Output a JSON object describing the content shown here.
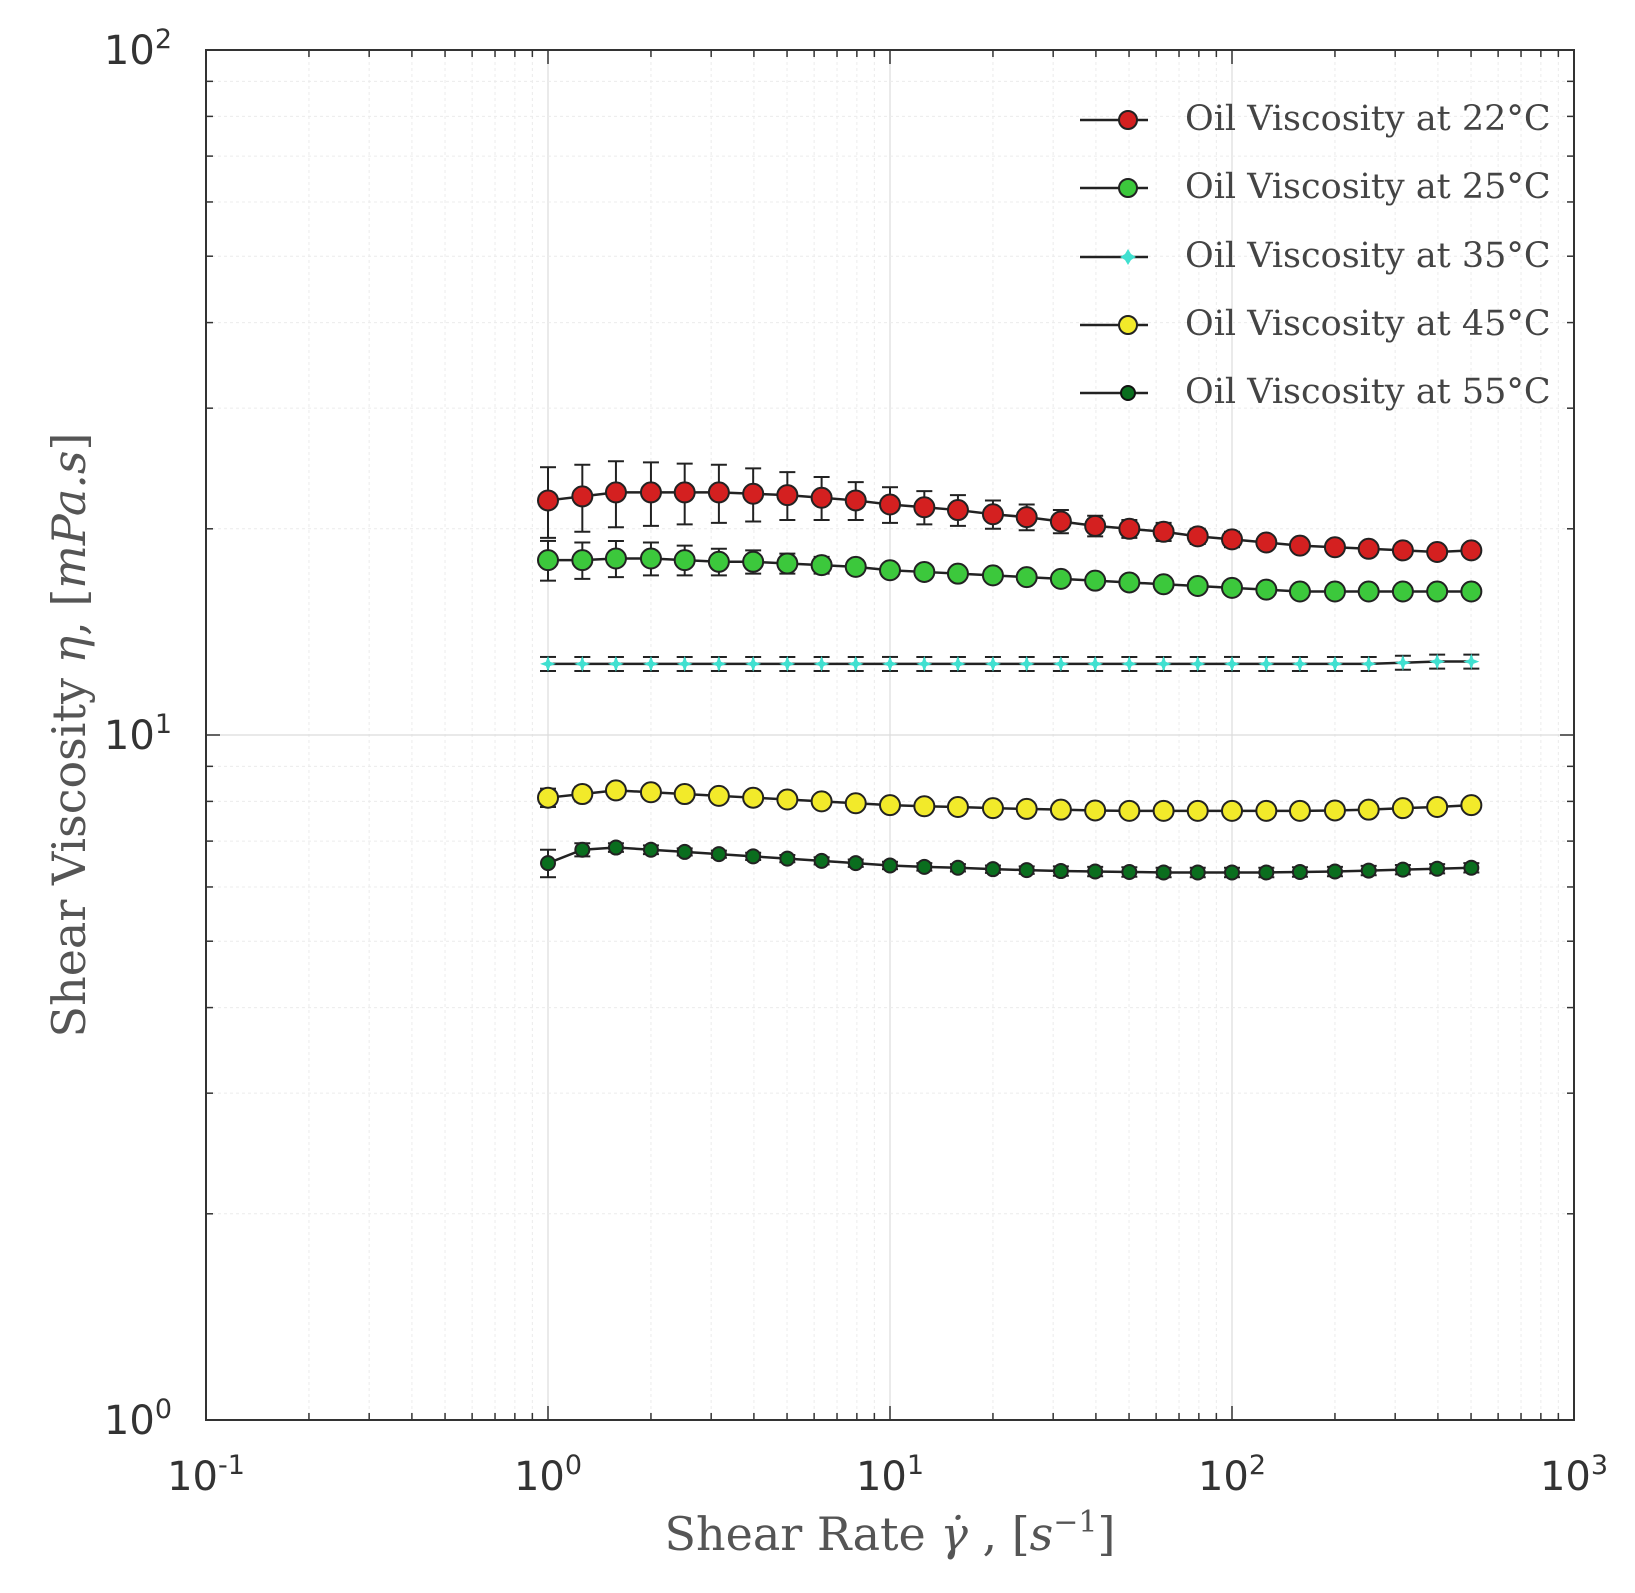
{
  "chart_data": {
    "type": "line",
    "x_scale": "log",
    "y_scale": "log",
    "xlim": [
      0.1,
      1000
    ],
    "ylim": [
      1,
      100
    ],
    "x_ticks": [
      {
        "base": "10",
        "exp": "-1",
        "value": 0.1
      },
      {
        "base": "10",
        "exp": "0",
        "value": 1
      },
      {
        "base": "10",
        "exp": "1",
        "value": 10
      },
      {
        "base": "10",
        "exp": "2",
        "value": 100
      },
      {
        "base": "10",
        "exp": "3",
        "value": 1000
      }
    ],
    "y_ticks": [
      {
        "base": "10",
        "exp": "0",
        "value": 1
      },
      {
        "base": "10",
        "exp": "1",
        "value": 10
      },
      {
        "base": "10",
        "exp": "2",
        "value": 100
      }
    ],
    "xlabel": {
      "prefix": "Shear Rate ",
      "symbol": "γ̇",
      "sep": " , [",
      "unit": "s",
      "unit_exp": "−1",
      "close": "]"
    },
    "ylabel": {
      "prefix": "Shear Viscosity ",
      "symbol": "η",
      "sep": ", [",
      "unit": "mPa.s",
      "close": "]"
    },
    "grid": true,
    "legend_position": "top-right",
    "x": [
      1.0,
      1.26,
      1.58,
      2.0,
      2.51,
      3.16,
      3.98,
      5.01,
      6.31,
      7.94,
      10.0,
      12.6,
      15.8,
      20.0,
      25.1,
      31.6,
      39.8,
      50.1,
      63.1,
      79.4,
      100,
      126,
      158,
      200,
      251,
      316,
      398,
      501
    ],
    "series": [
      {
        "name": "Oil Viscosity at 22°C",
        "color": "#d42020",
        "marker": "circle",
        "values": [
          22.0,
          22.3,
          22.6,
          22.6,
          22.6,
          22.6,
          22.5,
          22.4,
          22.2,
          22.0,
          21.7,
          21.5,
          21.3,
          21.0,
          20.8,
          20.5,
          20.2,
          20.0,
          19.8,
          19.5,
          19.3,
          19.1,
          18.9,
          18.8,
          18.7,
          18.6,
          18.5,
          18.6
        ],
        "errors": [
          2.6,
          2.5,
          2.5,
          2.4,
          2.3,
          2.2,
          2.0,
          1.8,
          1.6,
          1.4,
          1.3,
          1.2,
          1.1,
          1.0,
          0.9,
          0.8,
          0.7,
          0.6,
          0.6,
          0.5,
          0.5,
          0.4,
          0.3,
          0.3,
          0.3,
          0.3,
          0.3,
          0.3
        ]
      },
      {
        "name": "Oil Viscosity at 25°C",
        "color": "#3cc83c",
        "marker": "circle",
        "values": [
          18.0,
          18.0,
          18.1,
          18.1,
          18.0,
          17.9,
          17.9,
          17.8,
          17.7,
          17.6,
          17.4,
          17.3,
          17.2,
          17.1,
          17.0,
          16.9,
          16.8,
          16.7,
          16.6,
          16.5,
          16.4,
          16.3,
          16.2,
          16.2,
          16.2,
          16.2,
          16.2,
          16.2
        ],
        "errors": [
          1.2,
          1.1,
          1.1,
          1.0,
          0.9,
          0.8,
          0.7,
          0.6,
          0.5,
          0.4,
          0.3,
          0.3,
          0.2,
          0.2,
          0.2,
          0.2,
          0.1,
          0.1,
          0.1,
          0.1,
          0.1,
          0.1,
          0.1,
          0.1,
          0.1,
          0.1,
          0.1,
          0.1
        ]
      },
      {
        "name": "Oil Viscosity at 35°C",
        "color": "#40e0d0",
        "marker": "star",
        "values": [
          12.7,
          12.7,
          12.7,
          12.7,
          12.7,
          12.7,
          12.7,
          12.7,
          12.7,
          12.7,
          12.7,
          12.7,
          12.7,
          12.7,
          12.7,
          12.7,
          12.7,
          12.7,
          12.7,
          12.7,
          12.7,
          12.7,
          12.7,
          12.7,
          12.7,
          12.75,
          12.8,
          12.8
        ],
        "errors": [
          0.3,
          0.3,
          0.3,
          0.3,
          0.3,
          0.3,
          0.3,
          0.3,
          0.3,
          0.3,
          0.3,
          0.3,
          0.3,
          0.3,
          0.3,
          0.3,
          0.3,
          0.3,
          0.3,
          0.3,
          0.3,
          0.3,
          0.3,
          0.3,
          0.3,
          0.3,
          0.3,
          0.3
        ]
      },
      {
        "name": "Oil Viscosity at 45°C",
        "color": "#f2ea2a",
        "marker": "circle",
        "values": [
          8.1,
          8.2,
          8.3,
          8.25,
          8.2,
          8.15,
          8.1,
          8.05,
          8.0,
          7.95,
          7.9,
          7.87,
          7.85,
          7.82,
          7.8,
          7.78,
          7.76,
          7.75,
          7.75,
          7.75,
          7.75,
          7.75,
          7.75,
          7.76,
          7.78,
          7.82,
          7.85,
          7.9
        ],
        "errors": [
          0.25,
          0.2,
          0.15,
          0.12,
          0.1,
          0.1,
          0.1,
          0.1,
          0.1,
          0.1,
          0.1,
          0.1,
          0.1,
          0.1,
          0.1,
          0.1,
          0.1,
          0.1,
          0.1,
          0.1,
          0.1,
          0.1,
          0.1,
          0.1,
          0.1,
          0.1,
          0.1,
          0.1
        ]
      },
      {
        "name": "Oil Viscosity at 55°C",
        "color": "#0a6e1e",
        "marker": "circle",
        "values": [
          6.5,
          6.8,
          6.85,
          6.8,
          6.75,
          6.7,
          6.65,
          6.6,
          6.55,
          6.5,
          6.45,
          6.42,
          6.4,
          6.37,
          6.35,
          6.33,
          6.32,
          6.31,
          6.3,
          6.3,
          6.3,
          6.3,
          6.31,
          6.32,
          6.34,
          6.36,
          6.38,
          6.4
        ],
        "errors": [
          0.3,
          0.15,
          0.1,
          0.1,
          0.08,
          0.08,
          0.08,
          0.08,
          0.08,
          0.08,
          0.08,
          0.08,
          0.08,
          0.08,
          0.08,
          0.1,
          0.1,
          0.1,
          0.1,
          0.1,
          0.1,
          0.1,
          0.1,
          0.1,
          0.1,
          0.1,
          0.1,
          0.1
        ]
      }
    ]
  }
}
